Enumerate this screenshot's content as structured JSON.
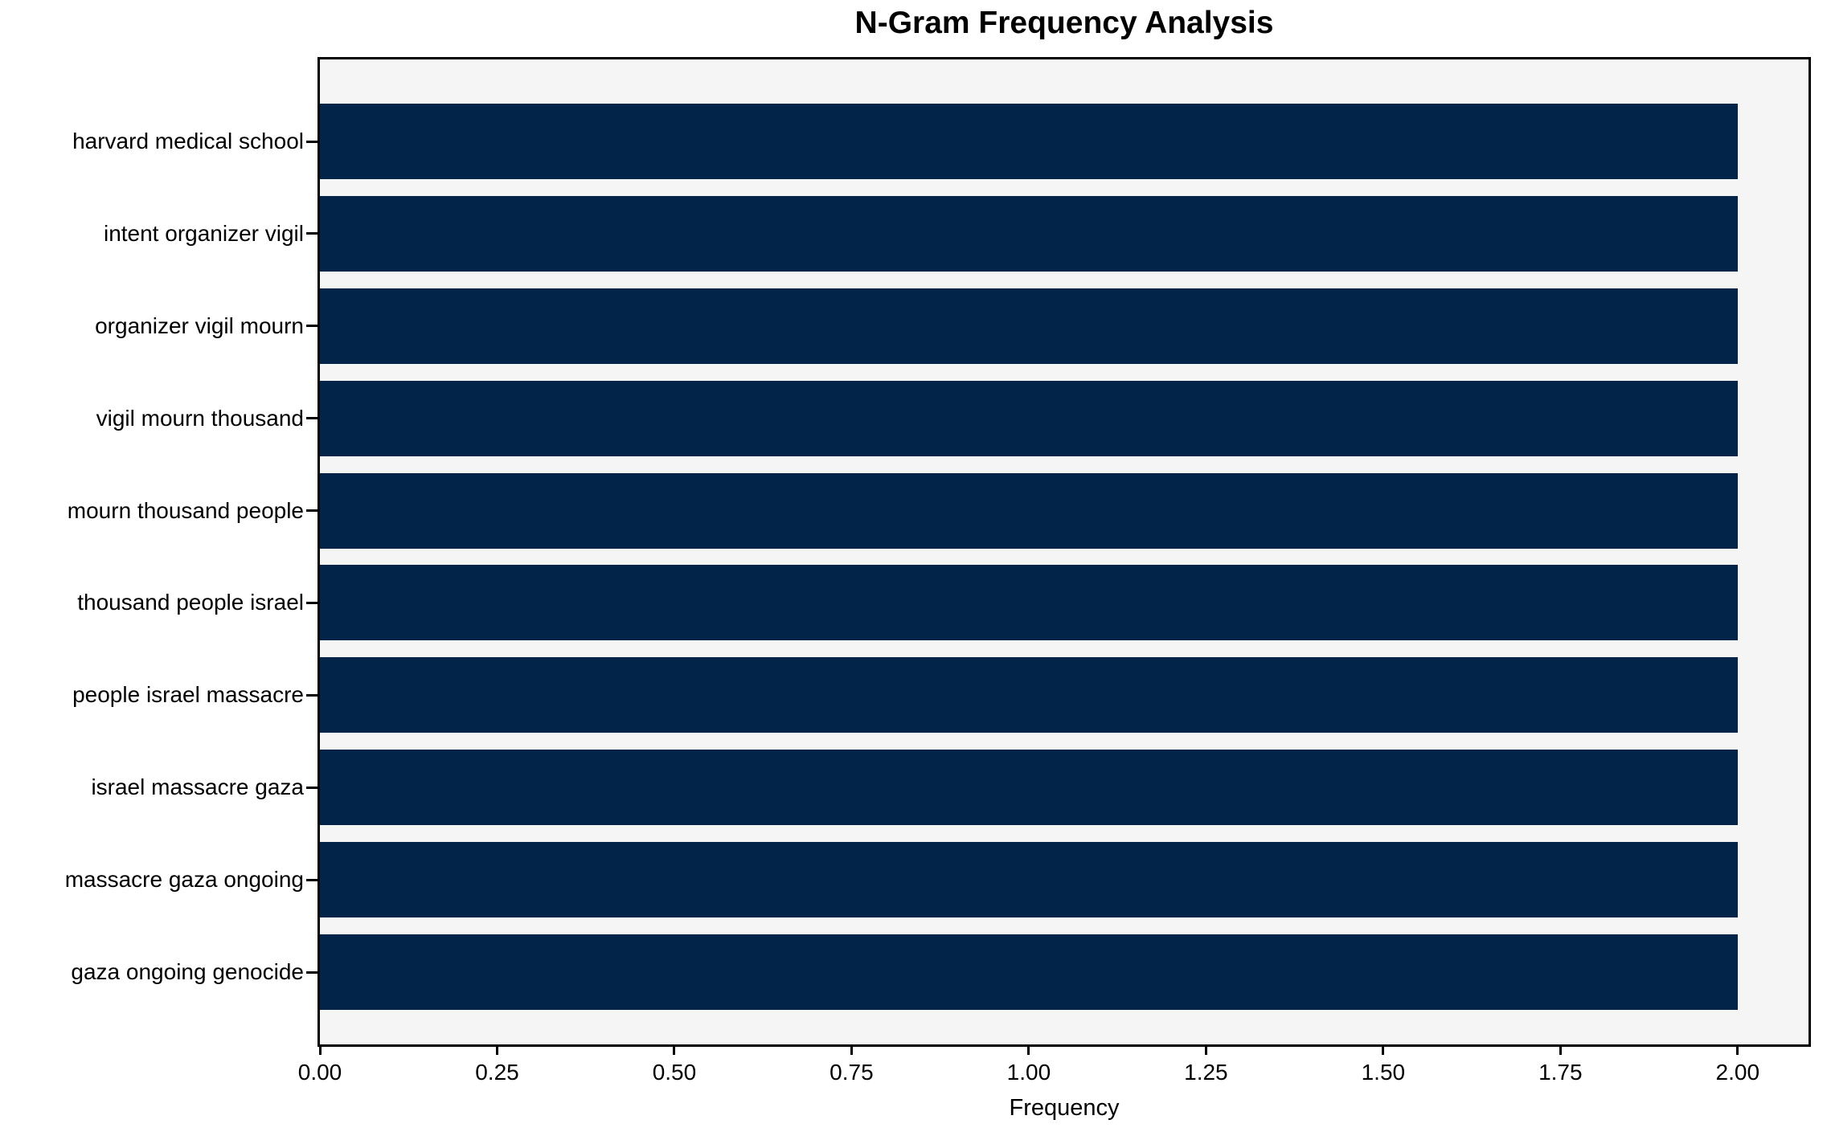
{
  "chart_data": {
    "type": "bar",
    "orientation": "horizontal",
    "title": "N-Gram Frequency Analysis",
    "xlabel": "Frequency",
    "ylabel": "",
    "categories": [
      "harvard medical school",
      "intent organizer vigil",
      "organizer vigil mourn",
      "vigil mourn thousand",
      "mourn thousand people",
      "thousand people israel",
      "people israel massacre",
      "israel massacre gaza",
      "massacre gaza ongoing",
      "gaza ongoing genocide"
    ],
    "values": [
      2.0,
      2.0,
      2.0,
      2.0,
      2.0,
      2.0,
      2.0,
      2.0,
      2.0,
      2.0
    ],
    "xlim": [
      0,
      2.1
    ],
    "xtick_values": [
      0.0,
      0.25,
      0.5,
      0.75,
      1.0,
      1.25,
      1.5,
      1.75,
      2.0
    ],
    "xtick_labels": [
      "0.00",
      "0.25",
      "0.50",
      "0.75",
      "1.00",
      "1.25",
      "1.50",
      "1.75",
      "2.00"
    ],
    "grid": false,
    "legend": false,
    "colors": {
      "bar": "#032449",
      "plot_background": "#f5f5f5",
      "figure_background": "#ffffff",
      "spine": "#000000",
      "text": "#000000"
    }
  }
}
